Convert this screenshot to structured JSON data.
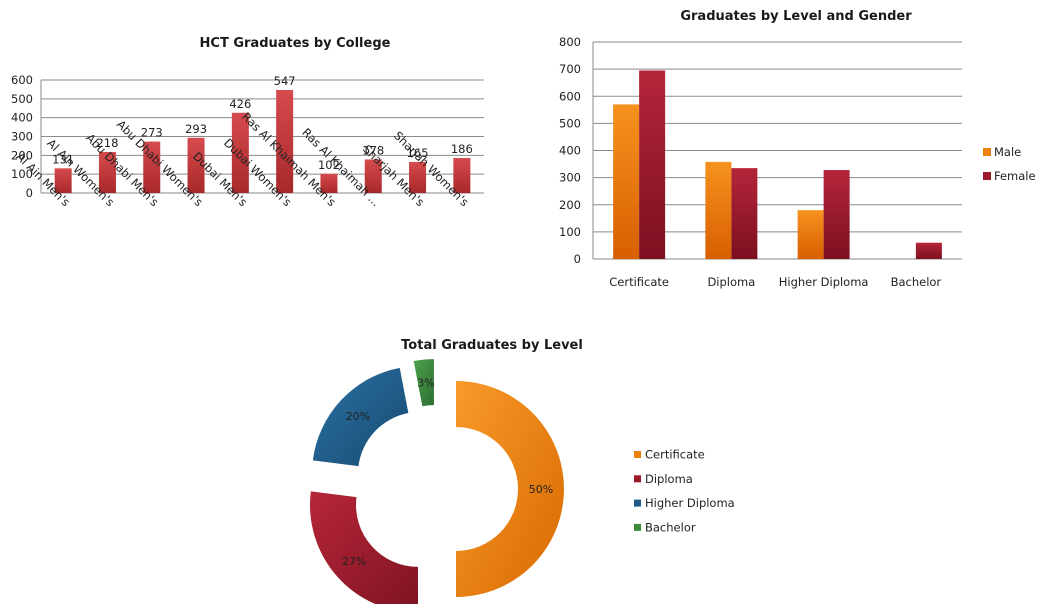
{
  "chart_data": [
    {
      "type": "bar",
      "title": "HCT Graduates by College",
      "categories": [
        "Al Ain Men's",
        "Al Ain Women's",
        "Abu Dhabi Men's",
        "Abu Dhabi Women's",
        "Dubai Men's",
        "Dubai Women's",
        "Ras Al Khaimah Men's",
        "Ras Al Khaimah ...",
        "Sharjah Men's",
        "Sharjah Women's"
      ],
      "values": [
        131,
        218,
        273,
        293,
        426,
        547,
        102,
        178,
        165,
        186
      ],
      "ylim": [
        0,
        600
      ],
      "yticks": [
        0,
        100,
        200,
        300,
        400,
        500,
        600
      ],
      "grid": true,
      "legend": "none",
      "colors": {
        "bar": "#c0393b"
      }
    },
    {
      "type": "bar",
      "title": "Graduates by Level and Gender",
      "categories": [
        "Certificate",
        "Diploma",
        "Higher Diploma",
        "Bachelor"
      ],
      "series": [
        {
          "name": "Male",
          "values": [
            570,
            358,
            180,
            0
          ],
          "color": "#f07f09"
        },
        {
          "name": "Female",
          "values": [
            695,
            335,
            328,
            60
          ],
          "color": "#9b1a2a"
        }
      ],
      "ylim": [
        0,
        800
      ],
      "yticks": [
        0,
        100,
        200,
        300,
        400,
        500,
        600,
        700,
        800
      ],
      "grid": true,
      "legend": "right"
    },
    {
      "type": "pie",
      "subtype": "exploded-doughnut",
      "title": "Total Graduates by Level",
      "labels": [
        "Certificate",
        "Diploma",
        "Higher Diploma",
        "Bachelor"
      ],
      "values": [
        50,
        27,
        20,
        3
      ],
      "display": [
        "50%",
        "27%",
        "20%",
        "3%"
      ],
      "colors": [
        "#f07f09",
        "#9b1a2a",
        "#1f5c87",
        "#3c8a3c"
      ],
      "legend": "right"
    }
  ]
}
